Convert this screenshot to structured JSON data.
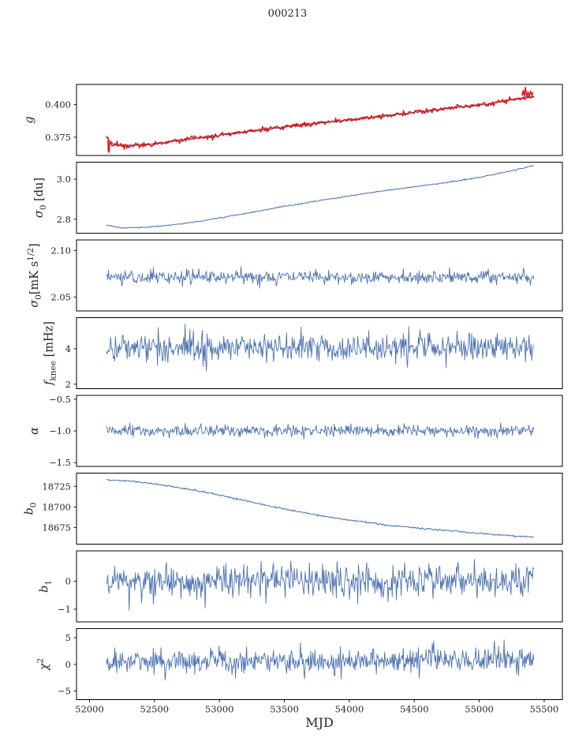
{
  "chart_data": {
    "type": "line",
    "title": "000213",
    "xlabel": "MJD",
    "xlim": [
      51900,
      55640
    ],
    "x_data_range": [
      52130,
      55420
    ],
    "xticks": [
      {
        "v": 52000,
        "label": "52000"
      },
      {
        "v": 52500,
        "label": "52500"
      },
      {
        "v": 53000,
        "label": "53000"
      },
      {
        "v": 53500,
        "label": "53500"
      },
      {
        "v": 54000,
        "label": "54000"
      },
      {
        "v": 54500,
        "label": "54500"
      },
      {
        "v": 55000,
        "label": "55000"
      },
      {
        "v": 55500,
        "label": "55500"
      }
    ],
    "colors": {
      "line": "#4c72b0",
      "overlay": "#e01212",
      "axis": "#000000",
      "text": "#262626",
      "background": "#ffffff"
    },
    "panels": [
      {
        "name": "g",
        "ylabel_parts": [
          {
            "t": "g",
            "i": 1
          }
        ],
        "ylim": [
          0.361,
          0.4155
        ],
        "yticks": [
          {
            "v": 0.375,
            "label": "0.375"
          },
          {
            "v": 0.4,
            "label": "0.400"
          }
        ],
        "series": [
          {
            "kind": "smooth",
            "color": "line",
            "width": 1.2,
            "seed": 21,
            "noise": 0.0004,
            "n": 500,
            "anchors": [
              [
                52130,
                0.3757
              ],
              [
                52160,
                0.3706
              ],
              [
                52220,
                0.3689
              ],
              [
                52300,
                0.3684
              ],
              [
                52400,
                0.3691
              ],
              [
                52520,
                0.3704
              ],
              [
                52650,
                0.372
              ],
              [
                52800,
                0.374
              ],
              [
                52950,
                0.3759
              ],
              [
                53100,
                0.3778
              ],
              [
                53250,
                0.3797
              ],
              [
                53400,
                0.3816
              ],
              [
                53550,
                0.3834
              ],
              [
                53700,
                0.3852
              ],
              [
                53850,
                0.3868
              ],
              [
                54000,
                0.3884
              ],
              [
                54150,
                0.3901
              ],
              [
                54300,
                0.3918
              ],
              [
                54450,
                0.3935
              ],
              [
                54600,
                0.3952
              ],
              [
                54750,
                0.3969
              ],
              [
                54900,
                0.3986
              ],
              [
                55050,
                0.4003
              ],
              [
                55200,
                0.4028
              ],
              [
                55330,
                0.405
              ],
              [
                55420,
                0.4064
              ]
            ]
          },
          {
            "kind": "smooth",
            "color": "overlay",
            "width": 1.5,
            "seed": 22,
            "noise": 0.0009,
            "n": 480,
            "anchors": [
              [
                52130,
                0.3757
              ],
              [
                52160,
                0.3706
              ],
              [
                52220,
                0.3689
              ],
              [
                52300,
                0.3684
              ],
              [
                52400,
                0.3691
              ],
              [
                52520,
                0.3704
              ],
              [
                52650,
                0.372
              ],
              [
                52800,
                0.374
              ],
              [
                52950,
                0.3759
              ],
              [
                53100,
                0.3778
              ],
              [
                53250,
                0.3797
              ],
              [
                53400,
                0.3816
              ],
              [
                53550,
                0.3834
              ],
              [
                53700,
                0.3852
              ],
              [
                53850,
                0.3868
              ],
              [
                54000,
                0.3884
              ],
              [
                54150,
                0.3901
              ],
              [
                54300,
                0.3918
              ],
              [
                54450,
                0.3935
              ],
              [
                54600,
                0.3952
              ],
              [
                54750,
                0.3969
              ],
              [
                54900,
                0.3986
              ],
              [
                55050,
                0.4003
              ],
              [
                55200,
                0.4028
              ],
              [
                55330,
                0.405
              ],
              [
                55420,
                0.4064
              ]
            ],
            "extras": [
              [
                [
                  52142,
                  0.3726
                ],
                [
                  52145,
                  0.3642
                ],
                [
                  52148,
                  0.37
                ],
                [
                  52151,
                  0.3634
                ],
                [
                  52155,
                  0.3708
                ]
              ],
              [
                [
                  55330,
                  0.407
                ],
                [
                  55338,
                  0.4108
                ],
                [
                  55346,
                  0.4062
                ],
                [
                  55355,
                  0.4132
                ],
                [
                  55365,
                  0.4058
                ],
                [
                  55375,
                  0.4098
                ],
                [
                  55385,
                  0.4066
                ],
                [
                  55395,
                  0.4104
                ],
                [
                  55405,
                  0.4072
                ],
                [
                  55415,
                  0.4095
                ]
              ]
            ]
          }
        ]
      },
      {
        "name": "sigma0-du",
        "ylabel_parts": [
          {
            "t": "σ",
            "i": 1
          },
          {
            "t": "0",
            "sub": 1
          },
          {
            "t": " [du]"
          }
        ],
        "ylim": [
          2.73,
          3.085
        ],
        "yticks": [
          {
            "v": 2.8,
            "label": "2.8"
          },
          {
            "v": 3.0,
            "label": "3.0"
          }
        ],
        "series": [
          {
            "kind": "smooth",
            "color": "line",
            "width": 1.0,
            "seed": 23,
            "noise": 0.0015,
            "n": 550,
            "anchors": [
              [
                52130,
                2.77
              ],
              [
                52250,
                2.756
              ],
              [
                52450,
                2.76
              ],
              [
                52650,
                2.772
              ],
              [
                52850,
                2.79
              ],
              [
                53050,
                2.812
              ],
              [
                53250,
                2.835
              ],
              [
                53450,
                2.858
              ],
              [
                53650,
                2.88
              ],
              [
                53850,
                2.901
              ],
              [
                54050,
                2.921
              ],
              [
                54250,
                2.94
              ],
              [
                54450,
                2.958
              ],
              [
                54650,
                2.975
              ],
              [
                54850,
                2.993
              ],
              [
                55050,
                3.015
              ],
              [
                55250,
                3.042
              ],
              [
                55420,
                3.068
              ]
            ]
          }
        ]
      },
      {
        "name": "sigma0-mk",
        "ylabel_parts": [
          {
            "t": "σ",
            "i": 1
          },
          {
            "t": "0",
            "sub": 1
          },
          {
            "t": "[mK s"
          },
          {
            "t": "1/2",
            "sup": 1
          },
          {
            "t": "]"
          }
        ],
        "ylim": [
          2.035,
          2.1115
        ],
        "yticks": [
          {
            "v": 2.05,
            "label": "2.05"
          },
          {
            "v": 2.1,
            "label": "2.10"
          }
        ],
        "series": [
          {
            "kind": "noisy",
            "color": "line",
            "width": 0.9,
            "seed": 31,
            "n": 620,
            "mean": 2.0715,
            "std": 0.0036,
            "clip": [
              2.058,
              2.087
            ]
          }
        ]
      },
      {
        "name": "f-knee",
        "ylabel_parts": [
          {
            "t": "f",
            "i": 1
          },
          {
            "t": "knee",
            "sub": 1
          },
          {
            "t": " [mHz]"
          }
        ],
        "ylim": [
          1.75,
          5.75
        ],
        "yticks": [
          {
            "v": 2,
            "label": "2"
          },
          {
            "v": 4,
            "label": "4"
          }
        ],
        "series": [
          {
            "kind": "noisy",
            "color": "line",
            "width": 0.9,
            "seed": 41,
            "n": 620,
            "mean": 4.08,
            "std": 0.4,
            "clip": [
              2.6,
              5.45
            ]
          }
        ]
      },
      {
        "name": "alpha",
        "ylabel_parts": [
          {
            "t": "α",
            "i": 1
          }
        ],
        "ylim": [
          -1.56,
          -0.44
        ],
        "yticks": [
          {
            "v": -1.5,
            "label": "−1.5"
          },
          {
            "v": -1.0,
            "label": "−1.0"
          },
          {
            "v": -0.5,
            "label": "−0.5"
          }
        ],
        "series": [
          {
            "kind": "noisy",
            "color": "line",
            "width": 0.9,
            "seed": 51,
            "n": 620,
            "mean": -1.005,
            "std": 0.045,
            "clip": [
              -1.18,
              -0.84
            ]
          }
        ]
      },
      {
        "name": "b0",
        "ylabel_parts": [
          {
            "t": "b",
            "i": 1
          },
          {
            "t": "0",
            "sub": 1
          }
        ],
        "ylim": [
          18655,
          18741
        ],
        "yticks": [
          {
            "v": 18675,
            "label": "18675"
          },
          {
            "v": 18700,
            "label": "18700"
          },
          {
            "v": 18725,
            "label": "18725"
          }
        ],
        "series": [
          {
            "kind": "smooth",
            "color": "line",
            "width": 1.0,
            "seed": 24,
            "noise": 0.5,
            "n": 550,
            "anchors": [
              [
                52130,
                18733
              ],
              [
                52300,
                18731.5
              ],
              [
                52500,
                18728
              ],
              [
                52700,
                18723
              ],
              [
                52900,
                18717.5
              ],
              [
                53100,
                18711
              ],
              [
                53300,
                18704
              ],
              [
                53500,
                18697.5
              ],
              [
                53700,
                18691.5
              ],
              [
                53900,
                18686.5
              ],
              [
                54100,
                18682
              ],
              [
                54300,
                18678
              ],
              [
                54500,
                18675
              ],
              [
                54700,
                18672
              ],
              [
                54900,
                18669.5
              ],
              [
                55100,
                18667
              ],
              [
                55250,
                18665
              ],
              [
                55420,
                18663.5
              ]
            ]
          }
        ]
      },
      {
        "name": "b1",
        "ylabel_parts": [
          {
            "t": "b",
            "i": 1
          },
          {
            "t": "1",
            "sub": 1
          }
        ],
        "ylim": [
          -1.45,
          1.08
        ],
        "yticks": [
          {
            "v": -1,
            "label": "−1"
          },
          {
            "v": 0,
            "label": "0"
          }
        ],
        "series": [
          {
            "kind": "noisy",
            "color": "line",
            "width": 0.9,
            "seed": 61,
            "n": 620,
            "mean": -0.02,
            "std": 0.3,
            "clip": [
              -1.32,
              0.95
            ]
          }
        ]
      },
      {
        "name": "chi2",
        "ylabel_parts": [
          {
            "t": "χ",
            "i": 1
          },
          {
            "t": "2",
            "sup": 1
          }
        ],
        "ylim": [
          -6.6,
          6.7
        ],
        "yticks": [
          {
            "v": -5,
            "label": "−5"
          },
          {
            "v": 0,
            "label": "0"
          },
          {
            "v": 5,
            "label": "5"
          }
        ],
        "series": [
          {
            "kind": "noisy",
            "color": "line",
            "width": 0.9,
            "seed": 71,
            "n": 620,
            "mean": 0.45,
            "std": 1.15,
            "drift": [
              0.0,
              0.5
            ],
            "clip": [
              -3.8,
              4.6
            ]
          }
        ]
      }
    ]
  }
}
